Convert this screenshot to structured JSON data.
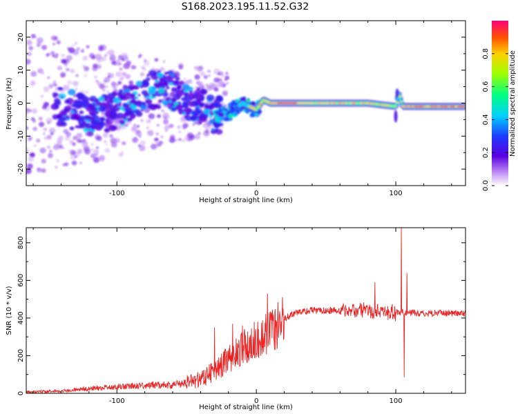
{
  "title": "S168.2023.195.11.52.G32",
  "chart_data": [
    {
      "type": "heatmap",
      "xlabel": "Height of straight line (km)",
      "ylabel": "Frequency (Hz)",
      "xlim": [
        -165,
        150
      ],
      "ylim": [
        -25,
        25
      ],
      "xticks": [
        -100,
        0,
        100
      ],
      "yticks": [
        -20,
        -10,
        0,
        10,
        20
      ],
      "colorbar": {
        "label": "Normalized spectral amplitude",
        "range": [
          0,
          1
        ],
        "ticks": [
          0.0,
          0.2,
          0.4,
          0.6,
          0.8
        ]
      },
      "ridge": [
        [
          -140,
          -1
        ],
        [
          -120,
          -4
        ],
        [
          -100,
          -2
        ],
        [
          -80,
          3
        ],
        [
          -65,
          5
        ],
        [
          -50,
          1
        ],
        [
          -40,
          -1
        ],
        [
          -30,
          -4
        ],
        [
          -20,
          -3
        ],
        [
          -10,
          0
        ],
        [
          0,
          -2
        ],
        [
          5,
          1
        ],
        [
          10,
          0
        ],
        [
          20,
          0
        ],
        [
          40,
          0
        ],
        [
          60,
          0
        ],
        [
          80,
          0
        ],
        [
          100,
          -1
        ],
        [
          102,
          3
        ],
        [
          105,
          -1
        ],
        [
          120,
          -1
        ],
        [
          150,
          -1
        ]
      ],
      "grid": false
    },
    {
      "type": "line",
      "xlabel": "Height of straight line (km)",
      "ylabel": "SNR (10 * v/v)",
      "xlim": [
        -165,
        150
      ],
      "ylim": [
        0,
        880
      ],
      "xticks": [
        -100,
        0,
        100
      ],
      "yticks": [
        0,
        200,
        400,
        600,
        800
      ],
      "line_color": "#ee2222",
      "trend": [
        [
          -165,
          8
        ],
        [
          -140,
          12
        ],
        [
          -120,
          25
        ],
        [
          -100,
          35
        ],
        [
          -80,
          40
        ],
        [
          -60,
          45
        ],
        [
          -50,
          55
        ],
        [
          -40,
          75
        ],
        [
          -30,
          120
        ],
        [
          -20,
          180
        ],
        [
          -10,
          240
        ],
        [
          0,
          290
        ],
        [
          10,
          320
        ],
        [
          20,
          400
        ],
        [
          30,
          430
        ],
        [
          40,
          440
        ],
        [
          60,
          440
        ],
        [
          80,
          440
        ],
        [
          100,
          430
        ],
        [
          120,
          425
        ],
        [
          150,
          425
        ]
      ],
      "spikes": [
        [
          -30,
          350
        ],
        [
          -17,
          370
        ],
        [
          -10,
          360
        ],
        [
          8,
          530
        ],
        [
          85,
          590
        ],
        [
          104,
          880
        ],
        [
          106,
          85
        ],
        [
          108,
          640
        ]
      ],
      "grid": false
    }
  ]
}
